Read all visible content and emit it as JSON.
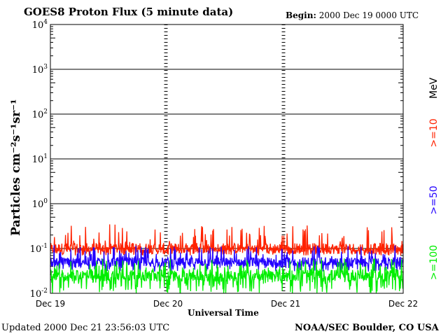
{
  "header": {
    "title": "GOES8 Proton Flux (5 minute data)",
    "begin_label": "Begin:",
    "begin_value": "2000 Dec 19 0000 UTC"
  },
  "footer": {
    "updated_label": "Updated",
    "updated_value": "2000 Dec 21 23:56:03 UTC",
    "credit": "NOAA/SEC Boulder, CO USA"
  },
  "right_legend": {
    "unit": "MeV",
    "entries": [
      {
        "text": ">=10",
        "color": "#ff2200"
      },
      {
        "text": ">=50",
        "color": "#2200ff"
      },
      {
        "text": ">=100",
        "color": "#00ee00"
      }
    ]
  },
  "chart_data": {
    "type": "line",
    "xlabel": "Universal Time",
    "ylabel": "Particles cm⁻²s⁻¹sr⁻¹",
    "yscale": "log",
    "ylim": [
      0.01,
      10000
    ],
    "yticks": [
      {
        "base": "10",
        "exp": "4"
      },
      {
        "base": "10",
        "exp": "3"
      },
      {
        "base": "10",
        "exp": "2"
      },
      {
        "base": "10",
        "exp": "1"
      },
      {
        "base": "10",
        "exp": "0"
      },
      {
        "base": "10",
        "exp": "-1"
      },
      {
        "base": "10",
        "exp": "-2"
      }
    ],
    "xticks": [
      "Dec 19",
      "Dec 20",
      "Dec 21",
      "Dec 22"
    ],
    "grid": "horizontal at decades, dotted vertical at day boundaries",
    "series": [
      {
        "name": ">=10",
        "color": "#ff2200",
        "typical": 0.1,
        "min": 0.07,
        "max": 0.35
      },
      {
        "name": ">=50",
        "color": "#2200ff",
        "typical": 0.05,
        "min": 0.03,
        "max": 0.12
      },
      {
        "name": ">=100",
        "color": "#00ee00",
        "typical": 0.025,
        "min": 0.01,
        "max": 0.06
      }
    ]
  }
}
